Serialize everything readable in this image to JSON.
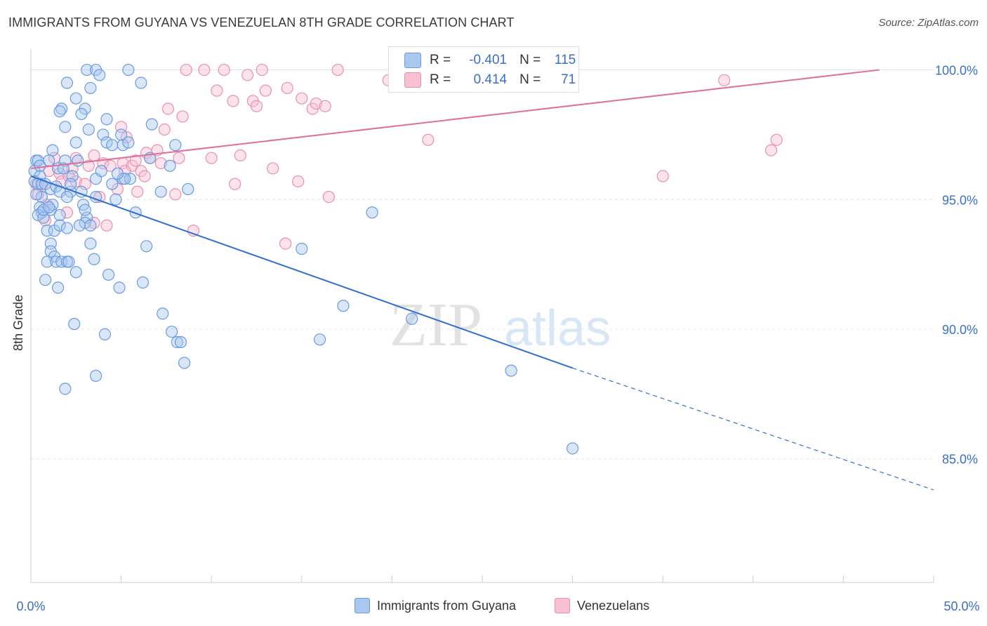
{
  "title": "IMMIGRANTS FROM GUYANA VS VENEZUELAN 8TH GRADE CORRELATION CHART",
  "source": "Source: ZipAtlas.com",
  "watermark": {
    "zip": "ZIP",
    "atlas": "atlas"
  },
  "legend": {
    "r_label": "R =",
    "n_label": "N =",
    "rows": [
      {
        "r": "-0.401",
        "n": "115",
        "color": "#a8c8f0",
        "border": "#6a9be0"
      },
      {
        "r": "0.414",
        "n": "71",
        "color": "#f8c0d2",
        "border": "#e890ad"
      }
    ]
  },
  "chart_data": {
    "type": "scatter",
    "title": "IMMIGRANTS FROM GUYANA VS VENEZUELAN 8TH GRADE CORRELATION CHART",
    "xlabel": "",
    "ylabel": "8th Grade",
    "xlim": [
      0,
      50
    ],
    "ylim": [
      80.5,
      100.8
    ],
    "x_ticks_labeled": [
      "0.0%",
      "50.0%"
    ],
    "y_ticks": [
      100,
      95,
      90,
      85
    ],
    "y_tick_labels": [
      "100.0%",
      "95.0%",
      "90.0%",
      "85.0%"
    ],
    "grid": true,
    "legend_placement": "bottom-center",
    "series": [
      {
        "name": "Immigrants from Guyana",
        "color": "#6a9be0",
        "fill": "#a8c8f0",
        "trend": {
          "x0": 0,
          "y0": 95.9,
          "x1": 30,
          "y1": 88.5,
          "dash_x1": 50,
          "dash_y1": 83.8,
          "color": "#2f6fd0"
        },
        "points": [
          [
            3.1,
            100
          ],
          [
            3.6,
            100
          ],
          [
            5.4,
            100
          ],
          [
            3.8,
            99.8
          ],
          [
            2,
            99.5
          ],
          [
            6.1,
            99.5
          ],
          [
            3.3,
            99.3
          ],
          [
            2.5,
            98.9
          ],
          [
            1.7,
            98.5
          ],
          [
            1.6,
            98.4
          ],
          [
            3.0,
            98.5
          ],
          [
            2.8,
            98.3
          ],
          [
            4.2,
            98.1
          ],
          [
            1.9,
            97.8
          ],
          [
            6.7,
            97.9
          ],
          [
            3.2,
            97.7
          ],
          [
            4.0,
            97.5
          ],
          [
            5.0,
            97.5
          ],
          [
            1.2,
            96.9
          ],
          [
            1.0,
            96.5
          ],
          [
            2.5,
            97.2
          ],
          [
            4.2,
            97.2
          ],
          [
            4.5,
            97.1
          ],
          [
            5.1,
            97.1
          ],
          [
            5.4,
            97.2
          ],
          [
            8.0,
            97.1
          ],
          [
            0.3,
            96.5
          ],
          [
            0.4,
            96.5
          ],
          [
            0.2,
            96.1
          ],
          [
            0.5,
            95.9
          ],
          [
            0.2,
            95.7
          ],
          [
            0.4,
            95.6
          ],
          [
            0.6,
            95.6
          ],
          [
            0.8,
            95.6
          ],
          [
            1.1,
            95.4
          ],
          [
            1.4,
            95.5
          ],
          [
            1.6,
            95.3
          ],
          [
            2.2,
            95.3
          ],
          [
            2.3,
            95.9
          ],
          [
            3.6,
            95.8
          ],
          [
            4.5,
            95.6
          ],
          [
            5.1,
            95.8
          ],
          [
            5.5,
            95.8
          ],
          [
            6.6,
            96.6
          ],
          [
            7.7,
            96.3
          ],
          [
            1.5,
            96.2
          ],
          [
            1.9,
            96.5
          ],
          [
            0.6,
            95.1
          ],
          [
            0.5,
            94.7
          ],
          [
            0.6,
            94.5
          ],
          [
            0.4,
            94.4
          ],
          [
            0.7,
            94.3
          ],
          [
            1.1,
            94.6
          ],
          [
            1.2,
            94.8
          ],
          [
            1.6,
            94.4
          ],
          [
            2.0,
            95.1
          ],
          [
            2.9,
            94.8
          ],
          [
            3.6,
            95.1
          ],
          [
            4.7,
            95.0
          ],
          [
            5.8,
            94.5
          ],
          [
            7.2,
            95.3
          ],
          [
            8.7,
            95.4
          ],
          [
            0.9,
            93.8
          ],
          [
            1.1,
            93.3
          ],
          [
            1.3,
            93.8
          ],
          [
            1.1,
            93.0
          ],
          [
            1.3,
            92.8
          ],
          [
            0.9,
            92.6
          ],
          [
            1.4,
            92.6
          ],
          [
            1.7,
            92.6
          ],
          [
            2.0,
            92.6
          ],
          [
            2.1,
            92.6
          ],
          [
            2.5,
            92.2
          ],
          [
            3.3,
            93.3
          ],
          [
            3.5,
            92.7
          ],
          [
            1.6,
            94.0
          ],
          [
            2.0,
            93.9
          ],
          [
            4.3,
            92.1
          ],
          [
            4.9,
            91.6
          ],
          [
            6.2,
            91.8
          ],
          [
            6.4,
            93.2
          ],
          [
            0.8,
            91.9
          ],
          [
            1.5,
            91.6
          ],
          [
            2.4,
            90.2
          ],
          [
            4.1,
            89.8
          ],
          [
            7.3,
            90.6
          ],
          [
            7.8,
            89.9
          ],
          [
            8.1,
            89.5
          ],
          [
            8.3,
            89.5
          ],
          [
            8.5,
            88.7
          ],
          [
            1.9,
            87.7
          ],
          [
            3.6,
            88.2
          ],
          [
            3.1,
            94.3
          ],
          [
            3.0,
            94.1
          ],
          [
            15.0,
            93.1
          ],
          [
            16.0,
            89.6
          ],
          [
            17.3,
            90.9
          ],
          [
            18.9,
            94.5
          ],
          [
            21.1,
            90.4
          ],
          [
            26.6,
            88.4
          ],
          [
            30.0,
            85.4
          ],
          [
            2.7,
            94.0
          ],
          [
            3.3,
            94.0
          ],
          [
            5.2,
            95.8
          ],
          [
            4.8,
            96.0
          ],
          [
            1.8,
            96.2
          ],
          [
            2.6,
            96.5
          ],
          [
            3.9,
            96.1
          ],
          [
            0.3,
            95.2
          ],
          [
            0.5,
            96.3
          ],
          [
            2.8,
            95.3
          ],
          [
            3.0,
            94.6
          ],
          [
            0.7,
            94.6
          ],
          [
            1.0,
            94.7
          ],
          [
            2.2,
            95.6
          ]
        ]
      },
      {
        "name": "Venezuelans",
        "color": "#e890ad",
        "fill": "#f8c0d2",
        "trend": {
          "x0": 0,
          "y0": 96.2,
          "x1": 47,
          "y1": 100,
          "color": "#e0709a"
        },
        "points": [
          [
            8.6,
            100
          ],
          [
            9.6,
            100
          ],
          [
            10.7,
            100
          ],
          [
            12.8,
            100
          ],
          [
            17.0,
            100
          ],
          [
            12.0,
            99.8
          ],
          [
            13.0,
            99.2
          ],
          [
            19.8,
            99.6
          ],
          [
            10.3,
            99.2
          ],
          [
            11.2,
            98.8
          ],
          [
            12.3,
            98.8
          ],
          [
            14.2,
            99.3
          ],
          [
            15.0,
            98.9
          ],
          [
            15.6,
            98.5
          ],
          [
            15.8,
            98.7
          ],
          [
            16.3,
            98.6
          ],
          [
            12.5,
            98.6
          ],
          [
            7.6,
            98.5
          ],
          [
            8.4,
            98.2
          ],
          [
            5.0,
            97.8
          ],
          [
            7.4,
            97.7
          ],
          [
            22.0,
            97.3
          ],
          [
            41.3,
            97.3
          ],
          [
            41.0,
            96.9
          ],
          [
            35.0,
            95.9
          ],
          [
            38.4,
            99.6
          ],
          [
            5.3,
            97.4
          ],
          [
            3.5,
            96.7
          ],
          [
            4.0,
            96.4
          ],
          [
            3.2,
            96.3
          ],
          [
            2.3,
            96.2
          ],
          [
            1.0,
            96.1
          ],
          [
            1.6,
            96.0
          ],
          [
            1.3,
            96.6
          ],
          [
            2.5,
            96.6
          ],
          [
            4.4,
            96.3
          ],
          [
            5.1,
            96.4
          ],
          [
            5.6,
            96.3
          ],
          [
            5.8,
            96.5
          ],
          [
            6.4,
            96.8
          ],
          [
            6.6,
            96.6
          ],
          [
            7.0,
            96.9
          ],
          [
            8.2,
            96.6
          ],
          [
            10.0,
            96.6
          ],
          [
            11.6,
            96.7
          ],
          [
            13.4,
            96.2
          ],
          [
            1.7,
            95.7
          ],
          [
            2.1,
            95.9
          ],
          [
            2.5,
            95.7
          ],
          [
            3.0,
            95.6
          ],
          [
            4.8,
            95.4
          ],
          [
            5.2,
            96.1
          ],
          [
            6.1,
            96.1
          ],
          [
            6.3,
            95.9
          ],
          [
            7.2,
            96.4
          ],
          [
            0.3,
            95.6
          ],
          [
            0.4,
            95.2
          ],
          [
            0.6,
            95.5
          ],
          [
            0.9,
            94.8
          ],
          [
            2.0,
            94.5
          ],
          [
            3.8,
            95.1
          ],
          [
            4.2,
            94.0
          ],
          [
            5.9,
            95.3
          ],
          [
            8.0,
            95.2
          ],
          [
            9.0,
            93.8
          ],
          [
            11.3,
            95.6
          ],
          [
            14.1,
            93.3
          ],
          [
            16.5,
            95.1
          ],
          [
            14.8,
            95.7
          ],
          [
            0.8,
            94.2
          ],
          [
            3.5,
            94.1
          ]
        ]
      }
    ]
  },
  "bottom_legend": [
    "Immigrants from Guyana",
    "Venezuelans"
  ],
  "x_axis_labels": {
    "left": "0.0%",
    "right": "50.0%"
  },
  "y_axis_title": "8th Grade"
}
